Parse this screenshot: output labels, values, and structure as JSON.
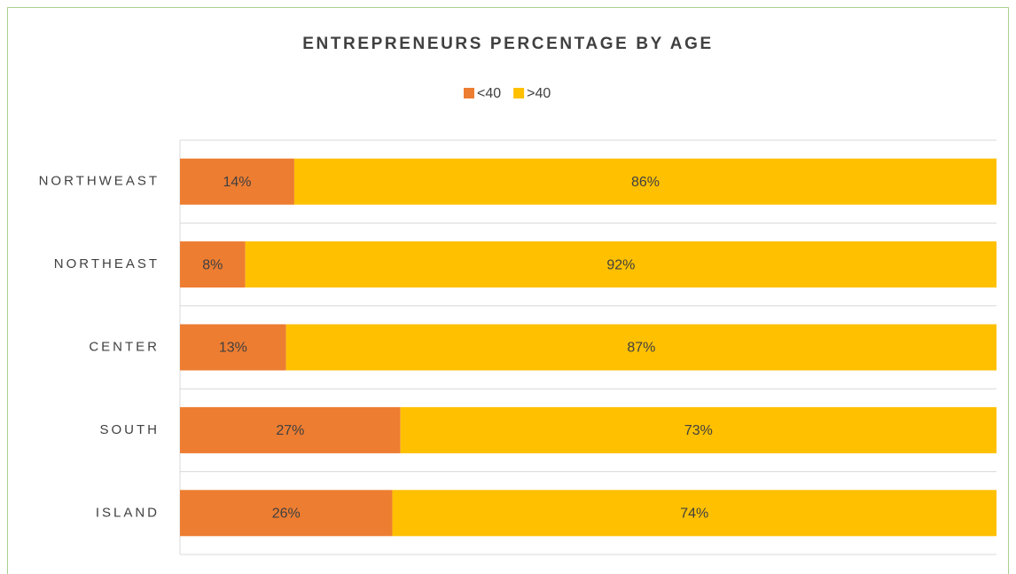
{
  "chart_data": {
    "type": "stacked_bar_horizontal",
    "title": "ENTREPRENEURS PERCENTAGE BY AGE",
    "categories": [
      "NORTHWEAST",
      "NORTHEAST",
      "CENTER",
      "SOUTH",
      "ISLAND"
    ],
    "series": [
      {
        "name": "<40",
        "color": "#ed7d31",
        "values": [
          14,
          8,
          13,
          27,
          26
        ],
        "value_labels": [
          "14%",
          "8%",
          "13%",
          "27%",
          "26%"
        ]
      },
      {
        "name": ">40",
        "color": "#ffc000",
        "values": [
          86,
          92,
          87,
          73,
          74
        ],
        "value_labels": [
          "86%",
          "92%",
          "87%",
          "73%",
          "74%"
        ]
      }
    ],
    "xlim": [
      0,
      100
    ],
    "legend": "top"
  }
}
